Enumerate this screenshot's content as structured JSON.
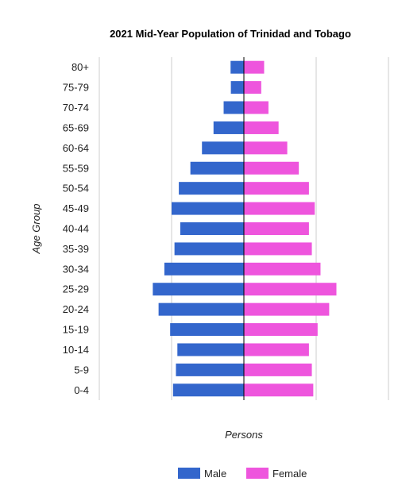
{
  "chart_data": {
    "type": "bar",
    "orientation": "horizontal",
    "layout": "population-pyramid",
    "title": "2021 Mid-Year Population of Trinidad and Tobago",
    "xlabel": "Persons",
    "ylabel": "Age Group",
    "x_tick_labels_shown": false,
    "grid": true,
    "legend_position": "bottom",
    "categories": [
      "80+",
      "75-79",
      "70-74",
      "65-69",
      "60-64",
      "55-59",
      "50-54",
      "45-49",
      "40-44",
      "35-39",
      "30-34",
      "25-29",
      "20-24",
      "15-19",
      "10-14",
      "5-9",
      "0-4"
    ],
    "series": [
      {
        "name": "Male",
        "color": "#3366cc",
        "values": [
          9200,
          9000,
          14000,
          21000,
          29000,
          37000,
          45000,
          50000,
          44000,
          48000,
          55000,
          63000,
          59000,
          51000,
          46000,
          47000,
          49000
        ]
      },
      {
        "name": "Female",
        "color": "#ee55dd",
        "values": [
          14000,
          12000,
          17000,
          24000,
          30000,
          38000,
          45000,
          49000,
          45000,
          47000,
          53000,
          64000,
          59000,
          51000,
          45000,
          47000,
          48000
        ]
      }
    ]
  }
}
